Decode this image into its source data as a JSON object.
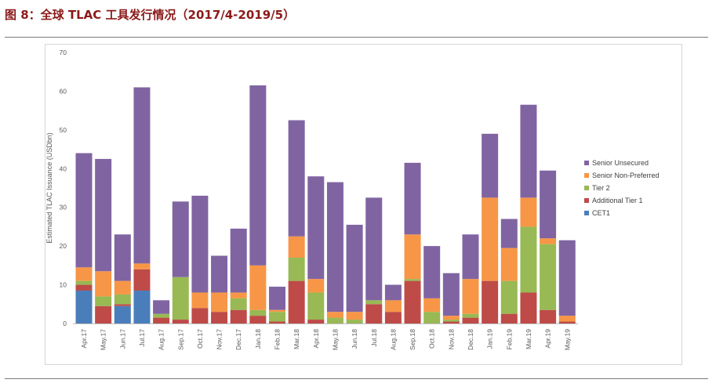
{
  "figure_title": "图 8：全球 TLAC 工具发行情况（2017/4-2019/5）",
  "chart_data": {
    "type": "bar",
    "stacked": true,
    "ylabel": "Estimated TLAC Issuance (USDbn)",
    "ylim": [
      0,
      70
    ],
    "yticks": [
      0,
      10,
      20,
      30,
      40,
      50,
      60,
      70
    ],
    "grid": false,
    "legend_position": "right",
    "categories": [
      "Apr.17",
      "May.17",
      "Jun.17",
      "Jul.17",
      "Aug.17",
      "Sep.17",
      "Oct.17",
      "Nov.17",
      "Dec.17",
      "Jan.18",
      "Feb.18",
      "Mar.18",
      "Apr.18",
      "May.18",
      "Jun.18",
      "Jul.18",
      "Aug.18",
      "Sep.18",
      "Oct.18",
      "Nov.18",
      "Dec.18",
      "Jan.19",
      "Feb.19",
      "Mar.19",
      "Apr.19",
      "May.19"
    ],
    "series": [
      {
        "name": "CET1",
        "color": "#4a7ebb",
        "values": [
          8.5,
          0,
          4.5,
          8.5,
          0,
          0,
          0,
          0,
          0,
          0,
          0,
          0,
          0,
          0,
          0,
          0,
          0,
          0,
          0,
          0,
          0,
          0,
          0,
          0,
          0,
          0
        ]
      },
      {
        "name": "Additional Tier 1",
        "color": "#be4b48",
        "values": [
          1.5,
          4.5,
          0.5,
          5.5,
          1.5,
          1,
          4,
          3,
          3.5,
          2,
          0.5,
          11,
          1,
          0,
          0,
          5,
          3,
          11,
          0,
          0.5,
          1.5,
          11,
          2.5,
          8,
          3.5,
          0.5
        ]
      },
      {
        "name": "Tier 2",
        "color": "#98b954",
        "values": [
          1,
          2.5,
          2.5,
          0,
          1,
          11,
          0,
          0,
          3,
          1.5,
          2.5,
          6,
          7,
          1.5,
          1,
          1,
          0,
          0.5,
          3,
          0.5,
          1,
          0,
          8.5,
          17,
          17,
          0
        ]
      },
      {
        "name": "Senior Non-Preferred",
        "color": "#f79646",
        "values": [
          3.5,
          6.5,
          3.5,
          1.5,
          0,
          0,
          4,
          5,
          1.5,
          11.5,
          0.5,
          5.5,
          3.5,
          1.5,
          2,
          0,
          3,
          11.5,
          3.5,
          1,
          9,
          21.5,
          8.5,
          7.5,
          1.5,
          1.5
        ]
      },
      {
        "name": "Senior Unsecured",
        "color": "#8064a2",
        "values": [
          29.5,
          29,
          12,
          45.5,
          3.5,
          19.5,
          25,
          9.5,
          16.5,
          46.5,
          6,
          30,
          26.5,
          33.5,
          22.5,
          26.5,
          4,
          18.5,
          13.5,
          11,
          11.5,
          16.5,
          7.5,
          24,
          17.5,
          19.5
        ]
      }
    ]
  }
}
